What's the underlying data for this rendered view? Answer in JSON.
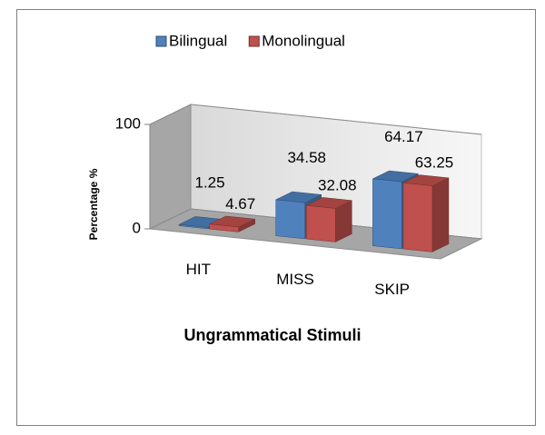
{
  "chart_data": {
    "type": "bar3d",
    "categories": [
      "HIT",
      "MISS",
      "SKIP"
    ],
    "series": [
      {
        "name": "Bilingual",
        "color": "#4f81bd",
        "values": [
          1.25,
          34.58,
          64.17
        ]
      },
      {
        "name": "Monolingual",
        "color": "#c0504d",
        "values": [
          4.67,
          32.08,
          63.25
        ]
      }
    ],
    "xlabel": "Ungrammatical Stimuli",
    "ylabel": "Percentage %",
    "ylim": [
      0,
      100
    ],
    "yticks": [
      0,
      100
    ],
    "grid": true,
    "legend": "top"
  }
}
